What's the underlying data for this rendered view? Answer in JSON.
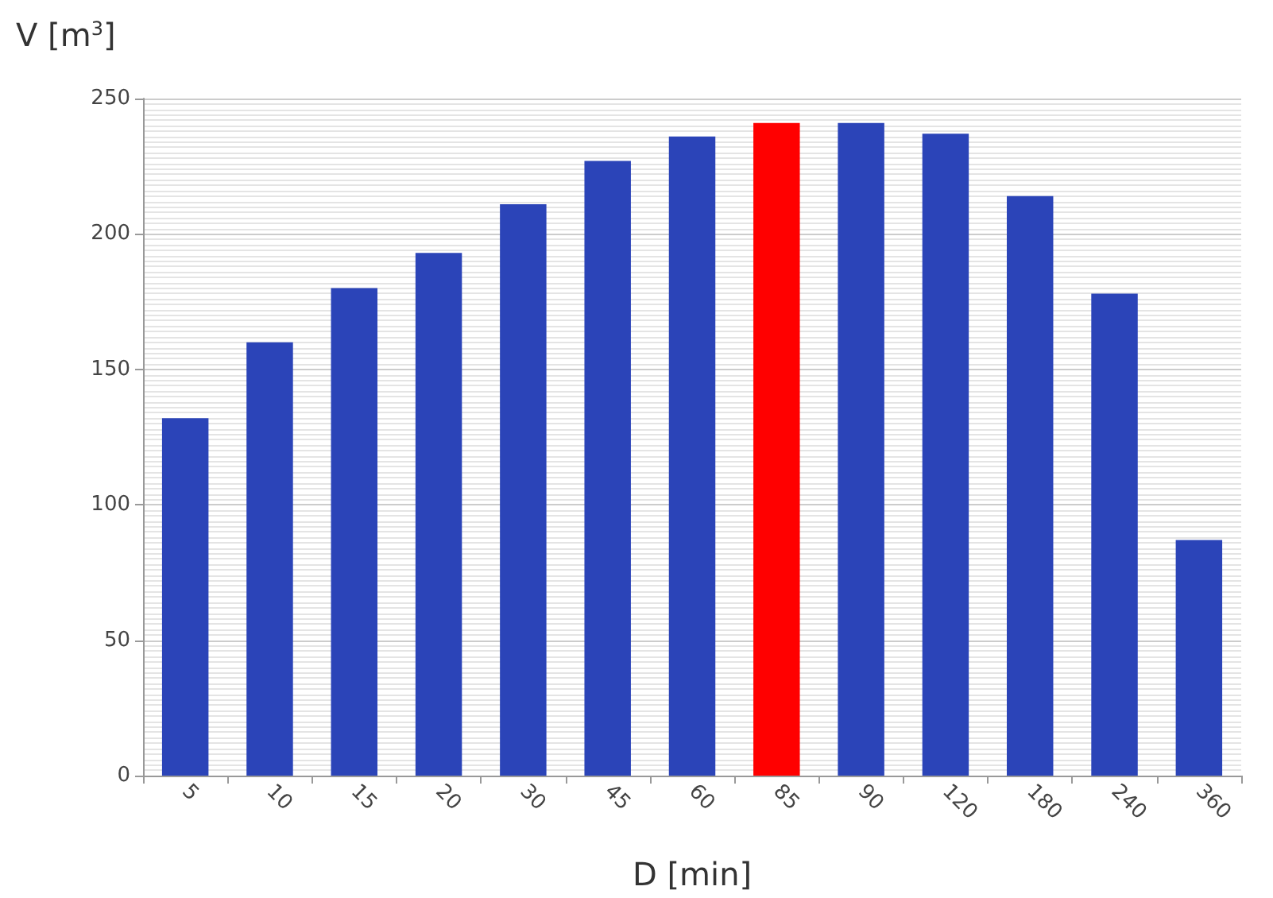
{
  "chart_data": {
    "type": "bar",
    "xlabel": "D [min]",
    "ylabel": "V [m$^{3}$]",
    "categories": [
      "5",
      "10",
      "15",
      "20",
      "30",
      "45",
      "60",
      "85",
      "90",
      "120",
      "180",
      "240",
      "360"
    ],
    "values": [
      132,
      160,
      180,
      193,
      211,
      227,
      236,
      241,
      241,
      237,
      214,
      178,
      87
    ],
    "colors": [
      "#2b44b8",
      "#2b44b8",
      "#2b44b8",
      "#2b44b8",
      "#2b44b8",
      "#2b44b8",
      "#2b44b8",
      "#ff0000",
      "#2b44b8",
      "#2b44b8",
      "#2b44b8",
      "#2b44b8",
      "#2b44b8"
    ],
    "ylim": [
      0,
      250
    ],
    "yticks": [
      0,
      50,
      100,
      150,
      200,
      250
    ],
    "grid": "y"
  }
}
